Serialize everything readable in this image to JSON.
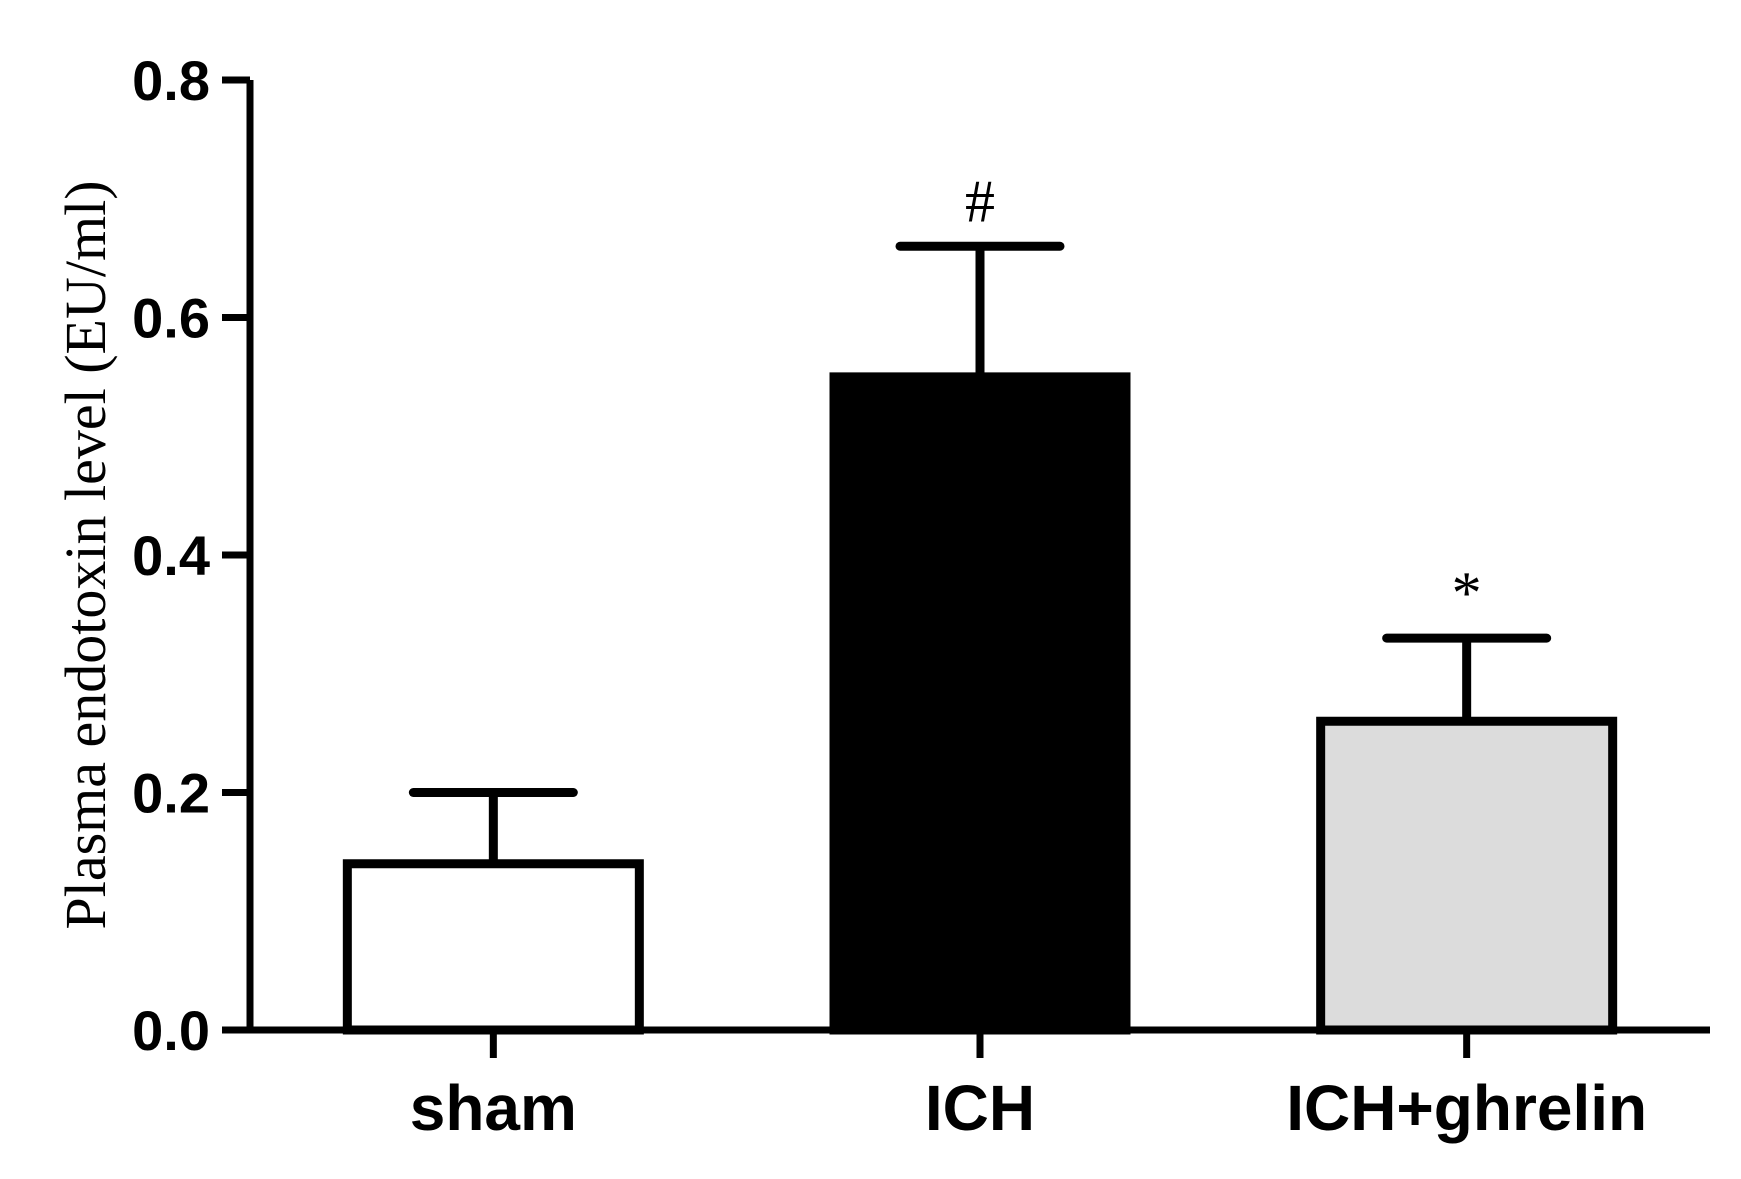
{
  "chart_data": {
    "type": "bar",
    "title": "",
    "xlabel": "",
    "ylabel": "Plasma endotoxin level (EU/ml)",
    "ylim": [
      0,
      0.8
    ],
    "yticks": [
      "0.0",
      "0.2",
      "0.4",
      "0.6",
      "0.8"
    ],
    "categories": [
      "sham",
      "ICH",
      "ICH+ghrelin"
    ],
    "values": [
      0.14,
      0.55,
      0.26
    ],
    "error_upper": [
      0.2,
      0.66,
      0.33
    ],
    "bar_colors": [
      "#ffffff",
      "#000000",
      "#dcdcdc"
    ],
    "annotations": [
      "",
      "#",
      "*"
    ],
    "grid": false,
    "legend": "none"
  }
}
